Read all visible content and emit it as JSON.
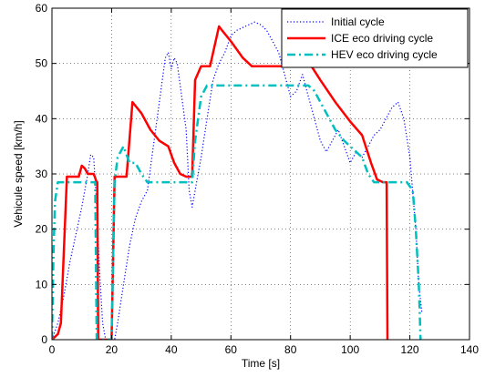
{
  "chart_data": {
    "type": "line",
    "title": "",
    "xlabel": "Time [s]",
    "ylabel": "Vehicule speed [km/h]",
    "xlim": [
      0,
      140
    ],
    "ylim": [
      0,
      60
    ],
    "xticks": [
      0,
      20,
      40,
      60,
      80,
      100,
      120,
      140
    ],
    "yticks": [
      0,
      10,
      20,
      30,
      40,
      50,
      60
    ],
    "grid": true,
    "legend_position": "top-right",
    "series": [
      {
        "name": "Initial cycle",
        "color": "#0000ff",
        "style": "dotted",
        "points": [
          [
            0,
            0
          ],
          [
            2,
            3
          ],
          [
            4,
            8
          ],
          [
            6,
            14
          ],
          [
            8,
            19
          ],
          [
            10,
            24
          ],
          [
            12,
            30
          ],
          [
            13,
            33.5
          ],
          [
            14,
            33
          ],
          [
            15,
            24
          ],
          [
            16,
            12
          ],
          [
            17,
            3
          ],
          [
            18,
            0
          ],
          [
            19,
            0
          ],
          [
            21,
            0
          ],
          [
            22,
            3
          ],
          [
            24,
            10
          ],
          [
            26,
            17
          ],
          [
            28,
            22
          ],
          [
            30,
            25
          ],
          [
            32,
            27
          ],
          [
            34,
            35
          ],
          [
            36,
            43
          ],
          [
            38,
            51
          ],
          [
            39,
            52
          ],
          [
            40,
            49
          ],
          [
            41,
            51
          ],
          [
            42,
            50
          ],
          [
            43,
            46
          ],
          [
            45,
            38
          ],
          [
            46,
            27
          ],
          [
            47,
            24
          ],
          [
            48,
            27
          ],
          [
            50,
            33
          ],
          [
            52,
            40
          ],
          [
            54,
            47
          ],
          [
            56,
            50
          ],
          [
            58,
            52
          ],
          [
            60,
            55
          ],
          [
            62,
            56
          ],
          [
            64,
            56.5
          ],
          [
            66,
            57
          ],
          [
            68,
            57.5
          ],
          [
            70,
            57
          ],
          [
            72,
            56
          ],
          [
            74,
            54
          ],
          [
            76,
            52
          ],
          [
            78,
            48
          ],
          [
            80,
            44
          ],
          [
            82,
            45
          ],
          [
            84,
            48
          ],
          [
            86,
            44
          ],
          [
            88,
            40
          ],
          [
            90,
            36
          ],
          [
            92,
            34
          ],
          [
            94,
            36
          ],
          [
            96,
            38
          ],
          [
            98,
            35
          ],
          [
            100,
            32
          ],
          [
            102,
            34
          ],
          [
            104,
            33
          ],
          [
            106,
            35
          ],
          [
            108,
            37
          ],
          [
            110,
            38
          ],
          [
            112,
            40
          ],
          [
            114,
            42
          ],
          [
            116,
            43
          ],
          [
            118,
            40
          ],
          [
            120,
            33
          ],
          [
            122,
            20
          ],
          [
            123,
            10
          ],
          [
            124,
            5
          ]
        ]
      },
      {
        "name": "ICE eco driving cycle",
        "color": "#ff0000",
        "style": "solid",
        "points": [
          [
            0,
            0
          ],
          [
            2,
            1
          ],
          [
            3,
            3
          ],
          [
            5,
            29.5
          ],
          [
            8,
            29.5
          ],
          [
            9,
            29.5
          ],
          [
            10,
            31.5
          ],
          [
            11,
            31
          ],
          [
            12,
            30
          ],
          [
            14,
            30
          ],
          [
            15,
            28.5
          ],
          [
            15.2,
            28.5
          ],
          [
            15.5,
            0
          ],
          [
            18,
            0
          ],
          [
            19,
            0
          ],
          [
            20,
            0
          ],
          [
            21,
            29.5
          ],
          [
            25,
            29.5
          ],
          [
            27,
            43
          ],
          [
            30,
            41
          ],
          [
            33,
            38
          ],
          [
            36,
            36
          ],
          [
            39,
            35
          ],
          [
            41,
            32
          ],
          [
            43,
            30
          ],
          [
            45,
            29.5
          ],
          [
            47,
            29.5
          ],
          [
            48,
            47
          ],
          [
            50,
            49.5
          ],
          [
            53,
            49.5
          ],
          [
            56,
            56.7
          ],
          [
            57,
            56
          ],
          [
            60,
            54
          ],
          [
            64,
            51
          ],
          [
            67,
            49.5
          ],
          [
            70,
            49.5
          ],
          [
            75,
            49.5
          ],
          [
            80,
            49.5
          ],
          [
            87,
            49.5
          ],
          [
            90,
            47
          ],
          [
            95,
            43
          ],
          [
            100,
            39.5
          ],
          [
            104,
            37
          ],
          [
            107,
            32
          ],
          [
            109,
            29
          ],
          [
            111,
            28.5
          ],
          [
            112.2,
            28.5
          ],
          [
            112.5,
            0
          ]
        ]
      },
      {
        "name": "HEV eco driving cycle",
        "color": "#00bfbf",
        "style": "dashdot",
        "points": [
          [
            0,
            0
          ],
          [
            0.5,
            15
          ],
          [
            1,
            25
          ],
          [
            2,
            28.5
          ],
          [
            5,
            28.5
          ],
          [
            10,
            28.5
          ],
          [
            13,
            28.5
          ],
          [
            14,
            28.5
          ],
          [
            14.5,
            28.5
          ],
          [
            15,
            0
          ],
          [
            18,
            0
          ],
          [
            19,
            0
          ],
          [
            20,
            0
          ],
          [
            21,
            28.5
          ],
          [
            22,
            33
          ],
          [
            24,
            35
          ],
          [
            26,
            32
          ],
          [
            28,
            32
          ],
          [
            30,
            30
          ],
          [
            32,
            28.5
          ],
          [
            35,
            28.5
          ],
          [
            40,
            28.5
          ],
          [
            45,
            28.5
          ],
          [
            47,
            28.5
          ],
          [
            48,
            36
          ],
          [
            50,
            44
          ],
          [
            52,
            46
          ],
          [
            56,
            46
          ],
          [
            60,
            46
          ],
          [
            70,
            46
          ],
          [
            80,
            46
          ],
          [
            86,
            46
          ],
          [
            88,
            45
          ],
          [
            90,
            43
          ],
          [
            92,
            41
          ],
          [
            95,
            38
          ],
          [
            98,
            36
          ],
          [
            100,
            35
          ],
          [
            102,
            34
          ],
          [
            104,
            33
          ],
          [
            106,
            30
          ],
          [
            108,
            28.5
          ],
          [
            110,
            28.5
          ],
          [
            116,
            28.5
          ],
          [
            119,
            28.5
          ],
          [
            121,
            27
          ],
          [
            122,
            20
          ],
          [
            123,
            10
          ],
          [
            123.6,
            0
          ]
        ]
      }
    ]
  }
}
